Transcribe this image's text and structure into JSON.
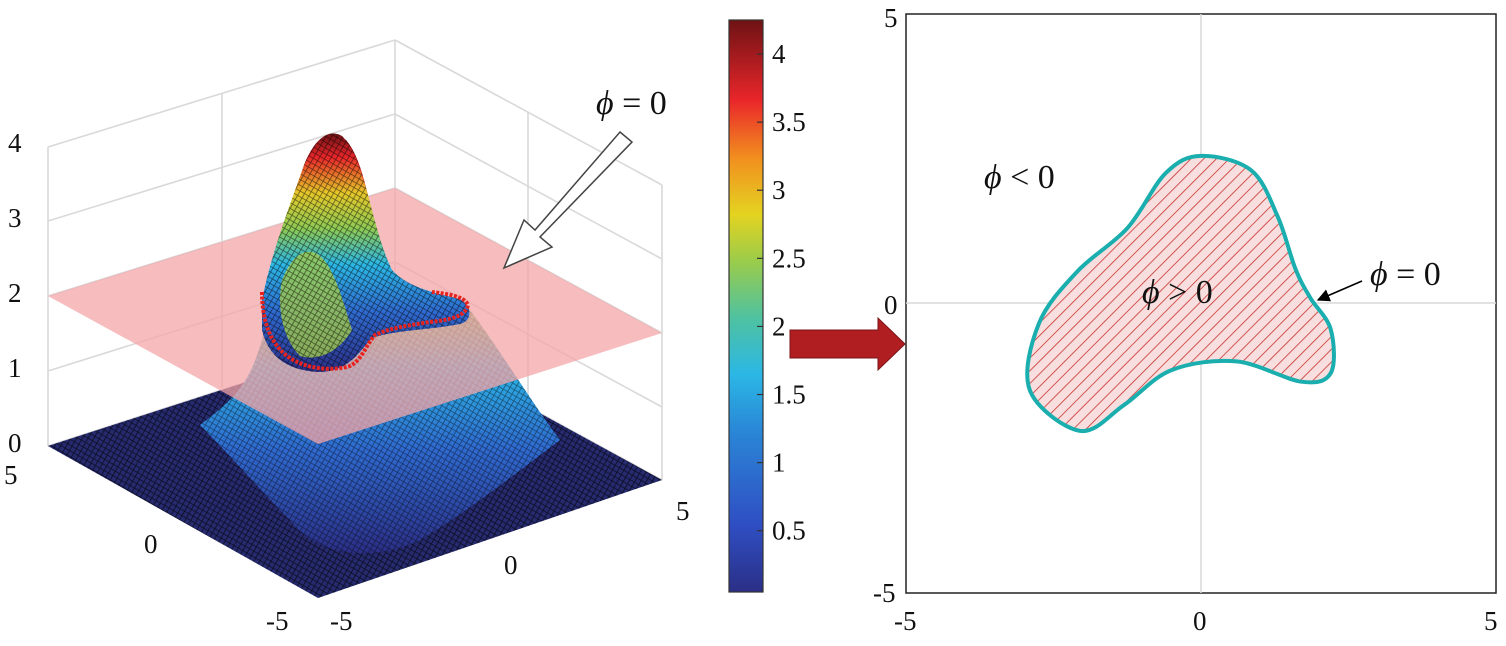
{
  "left_plot": {
    "z_ticks": [
      "4",
      "3",
      "2",
      "1",
      "0"
    ],
    "x_ticks": [
      "5",
      "0",
      "-5"
    ],
    "y_ticks": [
      "-5",
      "0",
      "5"
    ],
    "plane_label": {
      "symbol": "ϕ",
      "rest": " = 0"
    },
    "plane_level": 2,
    "surface_max": 4.2,
    "contour_color": "#e8231f",
    "plane_color": "#f4a6a8"
  },
  "colorbar": {
    "ticks": [
      "4",
      "3.5",
      "3",
      "2.5",
      "2",
      "1.5",
      "1",
      "0.5"
    ],
    "tick_values": [
      4,
      3.5,
      3,
      2.5,
      2,
      1.5,
      1,
      0.5
    ],
    "range": [
      0.05,
      4.25
    ],
    "colormap": "parula-like"
  },
  "arrow_color": "#b01e22",
  "right_plot": {
    "x_ticks": [
      "-5",
      "0",
      "5"
    ],
    "y_ticks": [
      "5",
      "0",
      "-5"
    ],
    "xlim": [
      -5,
      5
    ],
    "ylim": [
      -5,
      5
    ],
    "labels": {
      "outside": {
        "symbol": "ϕ",
        "rest": " < 0"
      },
      "inside": {
        "symbol": "ϕ",
        "rest": " > 0"
      },
      "boundary": {
        "symbol": "ϕ",
        "rest": " = 0"
      }
    },
    "boundary_color": "#1aaeae",
    "hatch_color": "#c8322d",
    "fill_color": "#f8dede",
    "boundary_points": [
      [
        0,
        2.55
      ],
      [
        0.85,
        2.3
      ],
      [
        1.3,
        1.5
      ],
      [
        1.6,
        0.6
      ],
      [
        1.85,
        0.1
      ],
      [
        2.2,
        -0.45
      ],
      [
        2.2,
        -1.2
      ],
      [
        1.7,
        -1.35
      ],
      [
        0.6,
        -1.0
      ],
      [
        -0.5,
        -1.15
      ],
      [
        -1.3,
        -1.75
      ],
      [
        -2.05,
        -2.2
      ],
      [
        -2.9,
        -1.5
      ],
      [
        -2.75,
        -0.35
      ],
      [
        -2.1,
        0.55
      ],
      [
        -1.25,
        1.3
      ],
      [
        -0.6,
        2.25
      ]
    ]
  }
}
